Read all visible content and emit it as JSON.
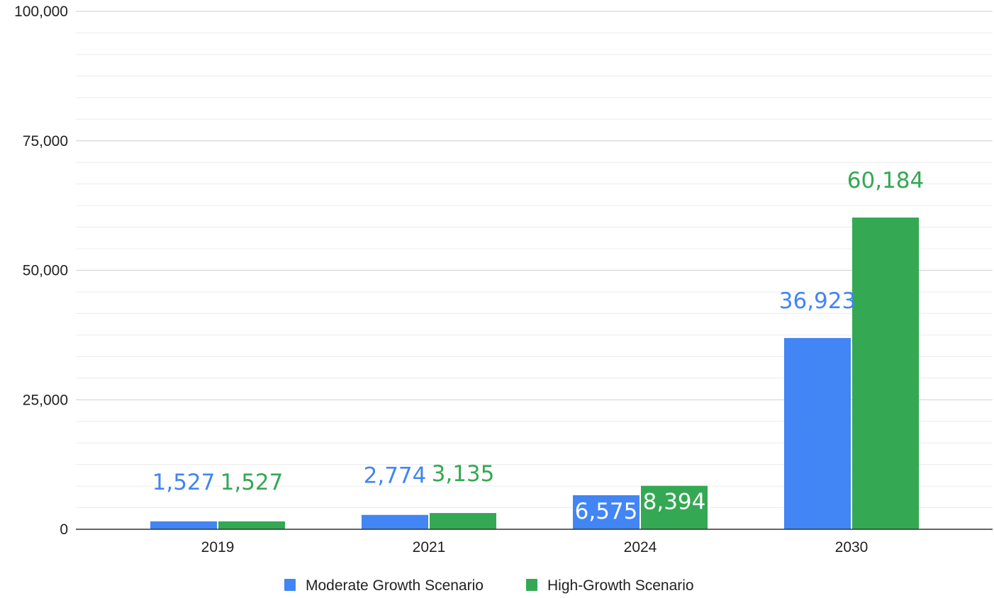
{
  "chart_data": {
    "type": "bar",
    "title": "",
    "xlabel": "",
    "ylabel": "",
    "categories": [
      "2019",
      "2021",
      "2024",
      "2030"
    ],
    "series": [
      {
        "name": "Moderate Growth Scenario",
        "color": "#4285f4",
        "values": [
          1527,
          2774,
          6575,
          36923
        ]
      },
      {
        "name": "High-Growth Scenario",
        "color": "#34a853",
        "values": [
          1527,
          3135,
          8394,
          60184
        ]
      }
    ],
    "data_labels": [
      [
        "1,527",
        "2,774",
        "6,575",
        "36,923"
      ],
      [
        "1,527",
        "3,135",
        "8,394",
        "60,184"
      ]
    ],
    "ylim": [
      0,
      100000
    ],
    "y_ticks": [
      0,
      25000,
      50000,
      75000,
      100000
    ],
    "y_tick_labels": [
      "0",
      "25,000",
      "50,000",
      "75,000",
      "100,000"
    ],
    "minor_gridlines": true,
    "grid": true,
    "legend_position": "bottom"
  }
}
